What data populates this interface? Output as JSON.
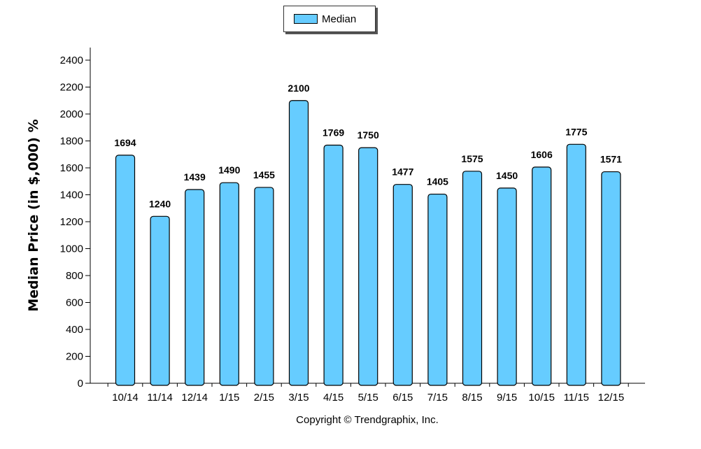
{
  "chart_data": {
    "type": "bar",
    "categories": [
      "10/14",
      "11/14",
      "12/14",
      "1/15",
      "2/15",
      "3/15",
      "4/15",
      "5/15",
      "6/15",
      "7/15",
      "8/15",
      "9/15",
      "10/15",
      "11/15",
      "12/15"
    ],
    "series": [
      {
        "name": "Median",
        "values": [
          1694,
          1240,
          1439,
          1490,
          1455,
          2100,
          1769,
          1750,
          1477,
          1405,
          1575,
          1450,
          1606,
          1775,
          1571
        ]
      }
    ],
    "ylabel": "Median Price (in $,000) %",
    "ylim": [
      0,
      2400
    ],
    "yticks": [
      0,
      200,
      400,
      600,
      800,
      1000,
      1200,
      1400,
      1600,
      1800,
      2000,
      2200,
      2400
    ],
    "data_labels": true,
    "legend_position": "top-center",
    "grid": false,
    "bar_color": "#66ccff"
  },
  "legend": {
    "label": "Median"
  },
  "footer": {
    "copyright": "Copyright © Trendgraphix, Inc."
  }
}
